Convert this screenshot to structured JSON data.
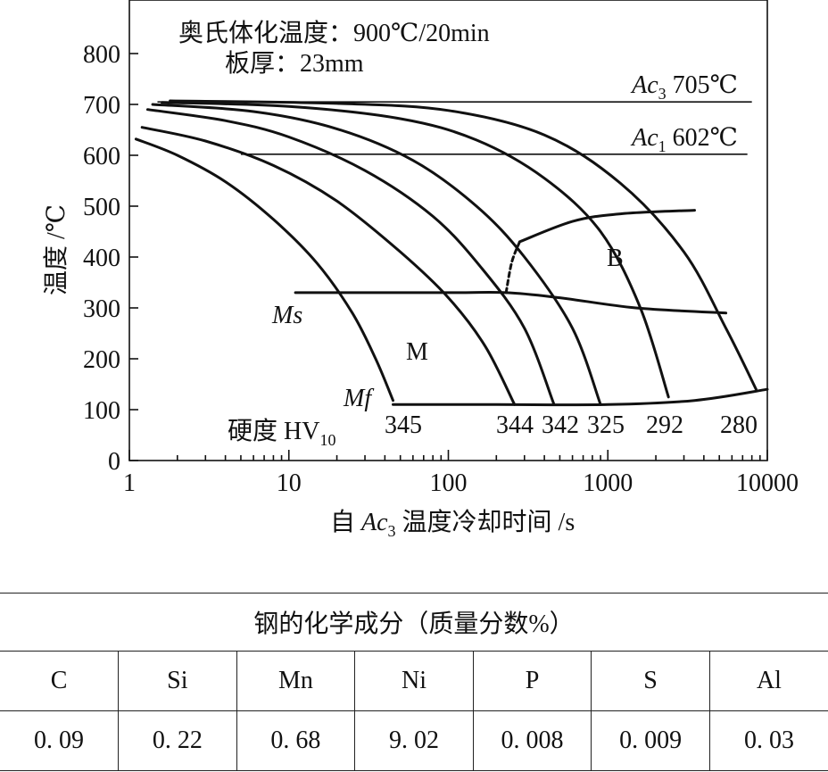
{
  "chart_data": {
    "type": "line",
    "annotation_line1": "奥氏体化温度：900℃/20min",
    "annotation_line2": "板厚：23mm",
    "ylabel": "温度 /℃",
    "xlabel": {
      "prefix": "自 ",
      "sym": "Ac",
      "sub": "3",
      "suffix": " 温度冷却时间 /s"
    },
    "x_scale": "log",
    "xlim": [
      1,
      10000
    ],
    "ylim": [
      0,
      850
    ],
    "x_ticks": [
      1,
      10,
      100,
      1000,
      10000
    ],
    "y_ticks": [
      0,
      100,
      200,
      300,
      400,
      500,
      600,
      700,
      800
    ],
    "reference_lines": [
      {
        "sym": "Ac",
        "sub": "3",
        "text": " 705℃",
        "y": 705,
        "x_range": [
          1.5,
          8000
        ]
      },
      {
        "sym": "Ac",
        "sub": "1",
        "text": " 602℃",
        "y": 602,
        "x_range": [
          5,
          7500
        ]
      }
    ],
    "cooling_curves": [
      {
        "hardness": "345",
        "points": [
          [
            1.1,
            632
          ],
          [
            2,
            600
          ],
          [
            4,
            548
          ],
          [
            8,
            474
          ],
          [
            15,
            388
          ],
          [
            25,
            290
          ],
          [
            35,
            200
          ],
          [
            45,
            118
          ]
        ]
      },
      {
        "hardness": "344",
        "points": [
          [
            1.2,
            655
          ],
          [
            3,
            628
          ],
          [
            8,
            580
          ],
          [
            20,
            510
          ],
          [
            50,
            410
          ],
          [
            100,
            320
          ],
          [
            170,
            225
          ],
          [
            260,
            110
          ]
        ]
      },
      {
        "hardness": "342",
        "points": [
          [
            1.3,
            690
          ],
          [
            4,
            668
          ],
          [
            10,
            636
          ],
          [
            30,
            570
          ],
          [
            80,
            480
          ],
          [
            160,
            380
          ],
          [
            300,
            260
          ],
          [
            460,
            110
          ]
        ]
      },
      {
        "hardness": "325",
        "points": [
          [
            1.4,
            700
          ],
          [
            6,
            686
          ],
          [
            20,
            652
          ],
          [
            60,
            590
          ],
          [
            150,
            500
          ],
          [
            300,
            400
          ],
          [
            600,
            260
          ],
          [
            900,
            110
          ]
        ]
      },
      {
        "hardness": "292",
        "points": [
          [
            1.6,
            704
          ],
          [
            10,
            696
          ],
          [
            50,
            672
          ],
          [
            150,
            630
          ],
          [
            400,
            555
          ],
          [
            900,
            450
          ],
          [
            1600,
            300
          ],
          [
            2400,
            125
          ]
        ]
      },
      {
        "hardness": "280",
        "points": [
          [
            1.8,
            707
          ],
          [
            20,
            702
          ],
          [
            100,
            688
          ],
          [
            400,
            640
          ],
          [
            1200,
            545
          ],
          [
            3000,
            410
          ],
          [
            5500,
            260
          ],
          [
            8500,
            140
          ]
        ]
      }
    ],
    "ms_curve": [
      [
        11,
        330
      ],
      [
        100,
        330
      ],
      [
        230,
        330
      ],
      [
        500,
        320
      ],
      [
        1500,
        300
      ],
      [
        5500,
        290
      ]
    ],
    "mf_curve": [
      [
        45,
        110
      ],
      [
        200,
        110
      ],
      [
        1000,
        110
      ],
      [
        3500,
        118
      ],
      [
        10000,
        140
      ]
    ],
    "b_boundary": {
      "dashed": [
        [
          230,
          330
        ],
        [
          250,
          390
        ],
        [
          280,
          430
        ]
      ],
      "solid": [
        [
          280,
          430
        ],
        [
          600,
          470
        ],
        [
          1200,
          485
        ],
        [
          3500,
          492
        ]
      ]
    },
    "labels": {
      "ms": "Ms",
      "mf": "Mf",
      "m_region": "M",
      "b_region": "B",
      "hardness_caption": "硬度 HV",
      "hardness_caption_sub": "10"
    }
  },
  "composition_table": {
    "title": "钢的化学成分（质量分数%）",
    "elements": [
      "C",
      "Si",
      "Mn",
      "Ni",
      "P",
      "S",
      "Al"
    ],
    "values": [
      "0. 09",
      "0. 22",
      "0. 68",
      "9. 02",
      "0. 008",
      "0. 009",
      "0. 03"
    ]
  }
}
